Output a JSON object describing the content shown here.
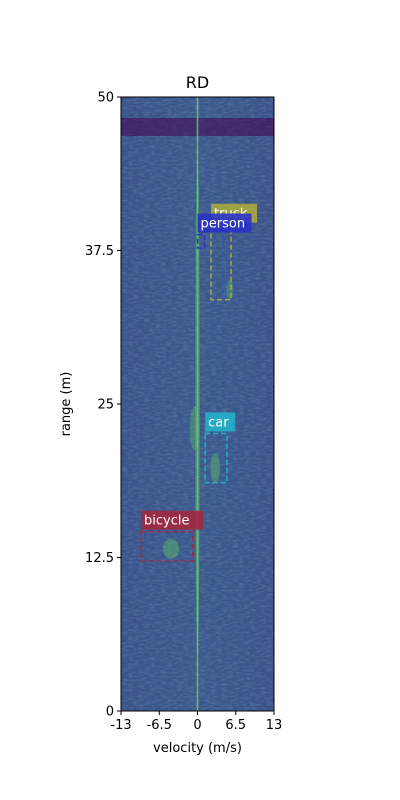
{
  "chart_data": {
    "type": "heatmap",
    "title": "RD",
    "xlabel": "velocity (m/s)",
    "ylabel": "range (m)",
    "xlim": [
      -13,
      13
    ],
    "ylim": [
      0,
      50
    ],
    "x_ticks": [
      -13,
      -6.5,
      0,
      6.5,
      13
    ],
    "x_tick_labels": [
      "-13",
      "-6.5",
      "0",
      "6.5",
      "13"
    ],
    "y_ticks": [
      0,
      12.5,
      25,
      37.5,
      50
    ],
    "y_tick_labels": [
      "0",
      "12.5",
      "25",
      "37.5",
      "50"
    ],
    "colormap": "viridis",
    "detections": [
      {
        "label": "truck",
        "vmin": 2.3,
        "vmax": 5.7,
        "rmin": 33.5,
        "rmax": 39.6,
        "color": "#a8a93d"
      },
      {
        "label": "person",
        "vmin": 0.0,
        "vmax": 1.2,
        "rmin": 37.7,
        "rmax": 38.8,
        "color": "#2a32c4"
      },
      {
        "label": "car",
        "vmin": 1.3,
        "vmax": 5.0,
        "rmin": 18.6,
        "rmax": 22.6,
        "color": "#22b0c8"
      },
      {
        "label": "bicycle",
        "vmin": -9.6,
        "vmax": -0.8,
        "rmin": 12.2,
        "rmax": 14.6,
        "color": "#a2283e"
      }
    ],
    "hotspots": [
      {
        "v": 0.0,
        "r": 25.0,
        "spread_v": 0.4,
        "spread_r": 20.0,
        "intensity": 0.55
      },
      {
        "v": -0.5,
        "r": 23.0,
        "spread_v": 0.8,
        "spread_r": 1.8,
        "intensity": 0.5
      },
      {
        "v": 3.0,
        "r": 19.8,
        "spread_v": 0.8,
        "spread_r": 1.2,
        "intensity": 0.6
      },
      {
        "v": -4.5,
        "r": 13.2,
        "spread_v": 1.4,
        "spread_r": 0.8,
        "intensity": 0.6
      },
      {
        "v": 5.5,
        "r": 34.3,
        "spread_v": 0.6,
        "spread_r": 0.8,
        "intensity": 0.45
      }
    ]
  }
}
